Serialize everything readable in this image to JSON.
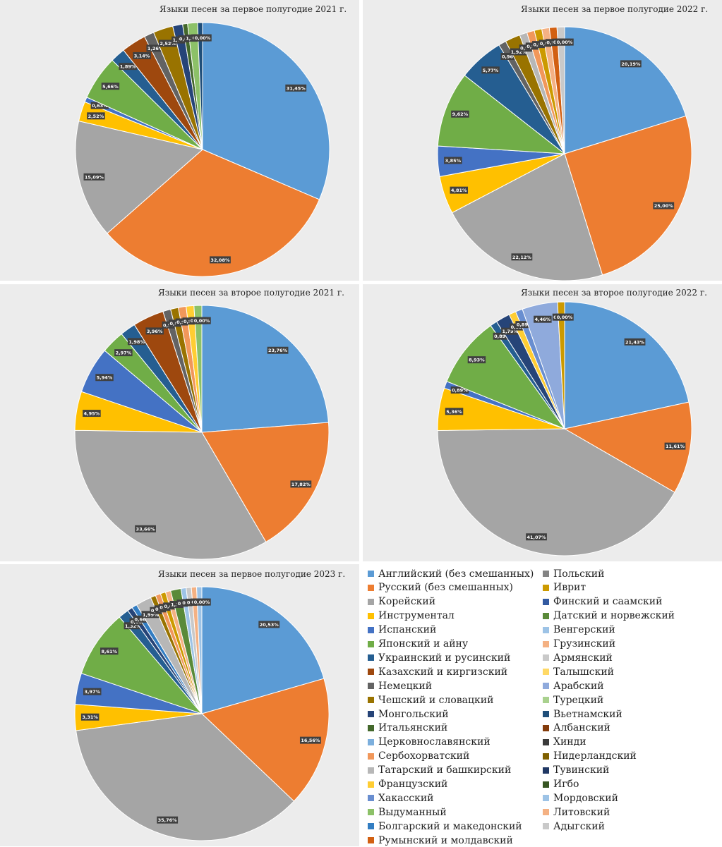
{
  "colors": {
    "Английский (без смешанных)": "#5b9bd5",
    "Русский (без смешанных)": "#ed7d31",
    "Корейский": "#a5a5a5",
    "Инструментал": "#ffc000",
    "Испанский": "#4472c4",
    "Японский и айну": "#70ad47",
    "Украинский и русинский": "#255e91",
    "Казахский и киргизский": "#9e480e",
    "Немецкий": "#636363",
    "Чешский и словацкий": "#997300",
    "Монгольский": "#264478",
    "Итальянский": "#43682b",
    "Церковнославянский": "#7cafdd",
    "Сербохорватский": "#f1975a",
    "Татарский и башкирский": "#b7b7b7",
    "Французский": "#ffcd33",
    "Хакасский": "#698ed0",
    "Выдуманный": "#8cc168",
    "Болгарский и македонский": "#327dc2",
    "Румынский и молдавский": "#d26012",
    "Польский": "#848484",
    "Иврит": "#cc9a00",
    "Финский и саамский": "#335aa1",
    "Датский и норвежский": "#5a8a39",
    "Венгерский": "#9dc3e6",
    "Грузинский": "#f4b183",
    "Армянский": "#c9c9c9",
    "Талышский": "#ffd966",
    "Арабский": "#8faadc",
    "Турецкий": "#a9d18e",
    "Вьетнамский": "#1f4e79",
    "Албанский": "#843c0c",
    "Хинди": "#3a3a3a",
    "Нидерландский": "#7f6000",
    "Тувинский": "#203864",
    "Игбо": "#375623",
    "Мордовский": "#9dc3e6",
    "Литовский": "#f4b183",
    "Адыгский": "#c9c9c9"
  },
  "legend": {
    "col1": [
      "Английский (без смешанных)",
      "Русский (без смешанных)",
      "Корейский",
      "Инструментал",
      "Испанский",
      "Японский и айну",
      "Украинский и русинский",
      "Казахский и киргизский",
      "Немецкий",
      "Чешский и словацкий",
      "Монгольский",
      "Итальянский",
      "Церковнославянский",
      "Сербохорватский",
      "Татарский и башкирский",
      "Французский",
      "Хакасский",
      "Выдуманный",
      "Болгарский и македонский",
      "Румынский и молдавский"
    ],
    "col2": [
      "Польский",
      "Иврит",
      "Финский и саамский",
      "Датский и норвежский",
      "Венгерский",
      "Грузинский",
      "Армянский",
      "Талышский",
      "Арабский",
      "Турецкий",
      "Вьетнамский",
      "Албанский",
      "Хинди",
      "Нидерландский",
      "Тувинский",
      "Игбо",
      "Мордовский",
      "Литовский",
      "Адыгский"
    ]
  },
  "chart_data": [
    {
      "type": "pie",
      "title": "Языки песен за первое полугодие 2021 г.",
      "slices": [
        {
          "name": "Английский (без смешанных)",
          "value": 31.45,
          "label": "31,45%"
        },
        {
          "name": "Русский (без смешанных)",
          "value": 32.08,
          "label": "32,08%"
        },
        {
          "name": "Корейский",
          "value": 15.09,
          "label": "15,09%"
        },
        {
          "name": "Инструментал",
          "value": 2.52,
          "label": "2,52%"
        },
        {
          "name": "Испанский",
          "value": 0.63,
          "label": "0,63%"
        },
        {
          "name": "Японский и айну",
          "value": 5.66,
          "label": "5,66%"
        },
        {
          "name": "Украинский и русинский",
          "value": 1.89,
          "label": "1,89%"
        },
        {
          "name": "Казахский и киргизский",
          "value": 3.14,
          "label": "3,14%"
        },
        {
          "name": "Немецкий",
          "value": 1.26,
          "label": "1,26%"
        },
        {
          "name": "Чешский и словацкий",
          "value": 2.52,
          "label": "2,52%"
        },
        {
          "name": "Монгольский",
          "value": 1.26,
          "label": "1,26%"
        },
        {
          "name": "Итальянский",
          "value": 0.63,
          "label": "0,63%"
        },
        {
          "name": "Выдуманный",
          "value": 1.26,
          "label": "1,26%"
        },
        {
          "name": "Вьетнамский",
          "value": 0.63,
          "label": "0,63%"
        },
        {
          "name": "Адыгский",
          "value": 0.0,
          "label": "0,00%"
        }
      ]
    },
    {
      "type": "pie",
      "title": "Языки песен за первое полугодие 2022 г.",
      "slices": [
        {
          "name": "Английский (без смешанных)",
          "value": 20.19,
          "label": "20,19%"
        },
        {
          "name": "Русский (без смешанных)",
          "value": 25.0,
          "label": "25,00%"
        },
        {
          "name": "Корейский",
          "value": 22.12,
          "label": "22,12%"
        },
        {
          "name": "Инструментал",
          "value": 4.81,
          "label": "4,81%"
        },
        {
          "name": "Испанский",
          "value": 3.85,
          "label": "3,85%"
        },
        {
          "name": "Японский и айну",
          "value": 9.62,
          "label": "9,62%"
        },
        {
          "name": "Украинский и русинский",
          "value": 5.77,
          "label": "5,77%"
        },
        {
          "name": "Немецкий",
          "value": 0.96,
          "label": "0,96%"
        },
        {
          "name": "Чешский и словацкий",
          "value": 1.92,
          "label": "1,92%"
        },
        {
          "name": "Татарский и башкирский",
          "value": 0.96,
          "label": "0,96%"
        },
        {
          "name": "Сербохорватский",
          "value": 0.96,
          "label": "0,96%"
        },
        {
          "name": "Иврит",
          "value": 0.96,
          "label": "0,96%"
        },
        {
          "name": "Грузинский",
          "value": 0.96,
          "label": "0,96%"
        },
        {
          "name": "Румынский и молдавский",
          "value": 0.96,
          "label": "0,96%"
        },
        {
          "name": "Армянский",
          "value": 0.96,
          "label": "0,96%"
        },
        {
          "name": "Хинди",
          "value": 0.0,
          "label": "0,00%"
        }
      ]
    },
    {
      "type": "pie",
      "title": "Языки песен за второе полугодие 2021 г.",
      "slices": [
        {
          "name": "Английский (без смешанных)",
          "value": 23.76,
          "label": "23,76%"
        },
        {
          "name": "Русский (без смешанных)",
          "value": 17.82,
          "label": "17,82%"
        },
        {
          "name": "Корейский",
          "value": 33.66,
          "label": "33,66%"
        },
        {
          "name": "Инструментал",
          "value": 4.95,
          "label": "4,95%"
        },
        {
          "name": "Испанский",
          "value": 5.94,
          "label": "5,94%"
        },
        {
          "name": "Японский и айну",
          "value": 2.97,
          "label": "2,97%"
        },
        {
          "name": "Украинский и русинский",
          "value": 1.98,
          "label": "1,98%"
        },
        {
          "name": "Казахский и киргизский",
          "value": 3.96,
          "label": "3,96%"
        },
        {
          "name": "Немецкий",
          "value": 0.99,
          "label": "0,99%"
        },
        {
          "name": "Чешский и словацкий",
          "value": 0.99,
          "label": "0,99%"
        },
        {
          "name": "Сербохорватский",
          "value": 0.99,
          "label": "0,99%"
        },
        {
          "name": "Французский",
          "value": 0.99,
          "label": "0,99%"
        },
        {
          "name": "Выдуманный",
          "value": 0.99,
          "label": "0,99%"
        },
        {
          "name": "Итальянский",
          "value": 0.0,
          "label": "0,00%"
        }
      ]
    },
    {
      "type": "pie",
      "title": "Языки песен за второе полугодие 2022 г.",
      "slices": [
        {
          "name": "Английский (без смешанных)",
          "value": 21.43,
          "label": "21,43%"
        },
        {
          "name": "Русский (без смешанных)",
          "value": 11.61,
          "label": "11,61%"
        },
        {
          "name": "Корейский",
          "value": 41.07,
          "label": "41,07%"
        },
        {
          "name": "Инструментал",
          "value": 5.36,
          "label": "5,36%"
        },
        {
          "name": "Испанский",
          "value": 0.89,
          "label": "0,89%"
        },
        {
          "name": "Японский и айну",
          "value": 8.93,
          "label": "8,93%"
        },
        {
          "name": "Украинский и русинский",
          "value": 0.89,
          "label": "0,89%"
        },
        {
          "name": "Монгольский",
          "value": 1.79,
          "label": "1,79%"
        },
        {
          "name": "Французский",
          "value": 0.89,
          "label": "0,89%"
        },
        {
          "name": "Хакасский",
          "value": 0.89,
          "label": "0,89%"
        },
        {
          "name": "Арабский",
          "value": 4.46,
          "label": "4,46%"
        },
        {
          "name": "Иврит",
          "value": 0.89,
          "label": "0,89%"
        },
        {
          "name": "Адыгский",
          "value": 0.0,
          "label": "0,00%"
        }
      ]
    },
    {
      "type": "pie",
      "title": "Языки песен за первое полугодие 2023 г.",
      "slices": [
        {
          "name": "Английский (без смешанных)",
          "value": 20.53,
          "label": "20,53%"
        },
        {
          "name": "Русский (без смешанных)",
          "value": 16.56,
          "label": "16,56%"
        },
        {
          "name": "Корейский",
          "value": 35.76,
          "label": "35,76%"
        },
        {
          "name": "Инструментал",
          "value": 3.31,
          "label": "3,31%"
        },
        {
          "name": "Испанский",
          "value": 3.97,
          "label": "3,97%"
        },
        {
          "name": "Японский и айну",
          "value": 8.61,
          "label": "8,61%"
        },
        {
          "name": "Украинский и русинский",
          "value": 1.32,
          "label": "1,32%"
        },
        {
          "name": "Монгольский",
          "value": 0.66,
          "label": "0,66%"
        },
        {
          "name": "Болгарский и македонский",
          "value": 0.66,
          "label": "0,66%"
        },
        {
          "name": "Татарский и башкирский",
          "value": 1.99,
          "label": "1,99%"
        },
        {
          "name": "Чешский и словацкий",
          "value": 0.66,
          "label": "0,66%"
        },
        {
          "name": "Сербохорватский",
          "value": 0.66,
          "label": "0,66%"
        },
        {
          "name": "Иврит",
          "value": 0.66,
          "label": "0,66%"
        },
        {
          "name": "Грузинский",
          "value": 0.66,
          "label": "0,66%"
        },
        {
          "name": "Датский и норвежский",
          "value": 1.32,
          "label": "1,32%"
        },
        {
          "name": "Венгерский",
          "value": 0.66,
          "label": "0,66%"
        },
        {
          "name": "Армянский",
          "value": 0.66,
          "label": "0,66%"
        },
        {
          "name": "Литовский",
          "value": 0.66,
          "label": "0,66%"
        },
        {
          "name": "Мордовский",
          "value": 0.66,
          "label": "0,66%"
        },
        {
          "name": "Адыгский",
          "value": 0.0,
          "label": "0,00%"
        }
      ]
    }
  ]
}
